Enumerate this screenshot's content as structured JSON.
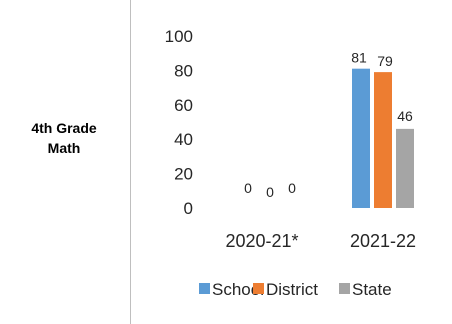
{
  "row_label": "4th Grade\nMath",
  "chart_data": {
    "type": "bar",
    "categories": [
      "2020-21*",
      "2021-22"
    ],
    "series": [
      {
        "name": "School",
        "color": "#5b9bd5",
        "values": [
          0,
          81
        ]
      },
      {
        "name": "District",
        "color": "#ed7d31",
        "values": [
          0,
          79
        ]
      },
      {
        "name": "State",
        "color": "#a5a5a5",
        "values": [
          0,
          46
        ]
      }
    ],
    "ylim": [
      0,
      100
    ],
    "yticks": [
      0,
      20,
      40,
      60,
      80,
      100
    ],
    "grid": false,
    "legend": "bottom",
    "data_labels": true
  }
}
